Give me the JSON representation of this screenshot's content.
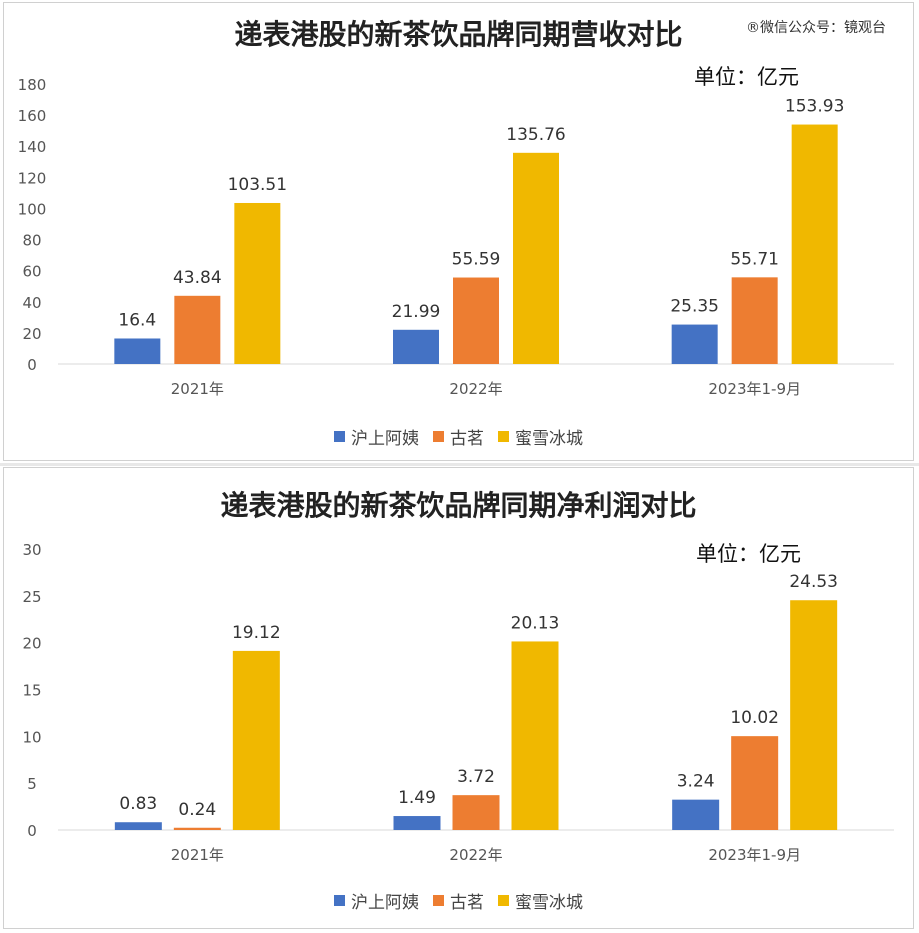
{
  "watermark": "®微信公众号：镜观台",
  "colors": {
    "hushangayi": "#4472C4",
    "guming": "#ED7D31",
    "mixue": "#F0B800",
    "axis_text": "#555555",
    "grid": "#d9d9d9"
  },
  "chart_data": [
    {
      "type": "bar",
      "title": "递表港股的新茶饮品牌同期营收对比",
      "unit": "单位：亿元",
      "categories": [
        "2021年",
        "2022年",
        "2023年1-9月"
      ],
      "series": [
        {
          "name": "沪上阿姨",
          "values": [
            16.4,
            21.99,
            25.35
          ],
          "labels": [
            "16.4",
            "21.99",
            "25.35"
          ]
        },
        {
          "name": "古茗",
          "values": [
            43.84,
            55.59,
            55.71
          ],
          "labels": [
            "43.84",
            "55.59",
            "55.71"
          ]
        },
        {
          "name": "蜜雪冰城",
          "values": [
            103.51,
            135.76,
            153.93
          ],
          "labels": [
            "103.51",
            "135.76",
            "153.93"
          ]
        }
      ],
      "ylim": [
        0,
        180
      ],
      "yticks": [
        "0",
        "20",
        "40",
        "60",
        "80",
        "100",
        "120",
        "140",
        "160",
        "180"
      ],
      "legend": "bottom",
      "grid": false
    },
    {
      "type": "bar",
      "title": "递表港股的新茶饮品牌同期净利润对比",
      "unit": "单位：亿元",
      "categories": [
        "2021年",
        "2022年",
        "2023年1-9月"
      ],
      "series": [
        {
          "name": "沪上阿姨",
          "values": [
            0.83,
            1.49,
            3.24
          ],
          "labels": [
            "0.83",
            "1.49",
            "3.24"
          ]
        },
        {
          "name": "古茗",
          "values": [
            0.24,
            3.72,
            10.02
          ],
          "labels": [
            "0.24",
            "3.72",
            "10.02"
          ]
        },
        {
          "name": "蜜雪冰城",
          "values": [
            19.12,
            20.13,
            24.53
          ],
          "labels": [
            "19.12",
            "20.13",
            "24.53"
          ]
        }
      ],
      "ylim": [
        0,
        30
      ],
      "yticks": [
        "0",
        "5",
        "10",
        "15",
        "20",
        "25",
        "30"
      ],
      "legend": "bottom",
      "grid": false
    }
  ]
}
